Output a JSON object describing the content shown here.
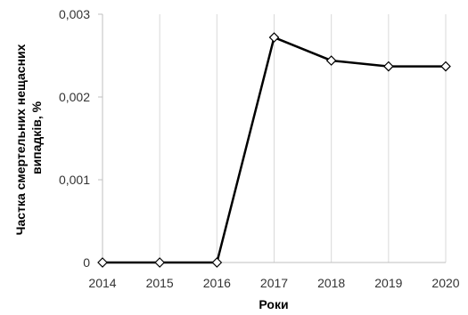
{
  "chart_data": {
    "type": "line",
    "x": [
      "2014",
      "2015",
      "2016",
      "2017",
      "2018",
      "2019",
      "2020"
    ],
    "series": [
      {
        "values": [
          0,
          0,
          0,
          0.00272,
          0.00244,
          0.00237,
          0.00237
        ]
      }
    ],
    "ylim": [
      0,
      0.003
    ],
    "yticks": [
      0,
      0.001,
      0.002,
      0.003
    ],
    "ytick_labels": [
      "0",
      "0,001",
      "0,002",
      "0,003"
    ],
    "xlabel": "Роки",
    "ylabel_lines": [
      "Частка смертельних нещасних",
      "випадків, %"
    ],
    "grid": "vertical",
    "line_color": "#000000",
    "marker": "diamond",
    "legend": "none"
  }
}
